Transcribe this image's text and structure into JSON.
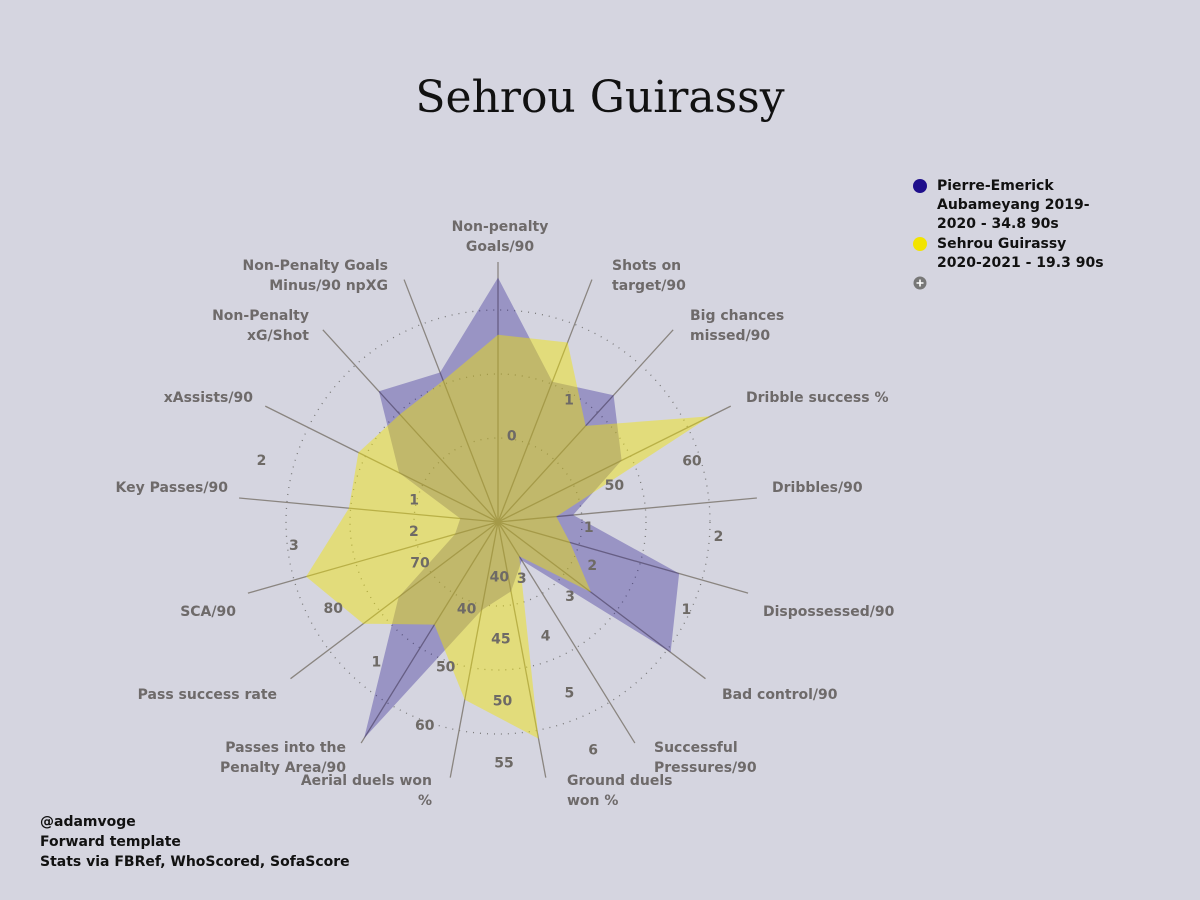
{
  "chart_data": {
    "type": "radar",
    "title": "Sehrou Guirassy",
    "axes": [
      {
        "name": "Non-penalty Goals/90",
        "lim": [
          -0.5,
          1
        ],
        "ticks": [
          0
        ]
      },
      {
        "name": "Shots on target/90",
        "lim": [
          0,
          1.85
        ],
        "ticks": [
          1
        ]
      },
      {
        "name": "Big chances missed/90",
        "lim": [
          0,
          1
        ]
      },
      {
        "name": "Dribble success %",
        "lim": [
          35,
          67
        ],
        "ticks": [
          50,
          60
        ]
      },
      {
        "name": "Dribbles/90",
        "lim": [
          0.3,
          2.3
        ],
        "ticks": [
          1,
          2
        ]
      },
      {
        "name": "Dispossessed/90",
        "lim": [
          3,
          0.5
        ],
        "ticks": [
          2,
          1
        ]
      },
      {
        "name": "Bad control/90",
        "lim": [
          4,
          1.5
        ],
        "ticks": [
          3
        ]
      },
      {
        "name": "Successful Pressures/90",
        "lim": [
          2,
          6.2
        ],
        "ticks": [
          3,
          4,
          5,
          6
        ]
      },
      {
        "name": "Ground duels won %",
        "lim": [
          35.5,
          56.5
        ],
        "ticks": [
          40,
          45,
          50,
          55
        ]
      },
      {
        "name": "Aerial duels won %",
        "lim": [
          25,
          67
        ],
        "ticks": [
          40,
          50,
          60
        ]
      },
      {
        "name": "Passes into the Penalty Area/90",
        "lim": [
          0,
          1.4
        ],
        "ticks": [
          1
        ]
      },
      {
        "name": "Pass success rate",
        "lim": [
          61,
          87.5
        ],
        "ticks": [
          70,
          80
        ]
      },
      {
        "name": "SCA/90",
        "lim": [
          1.3,
          3.45
        ],
        "ticks": [
          2,
          3
        ]
      },
      {
        "name": "Key Passes/90",
        "lim": [
          0.45,
          2.1
        ],
        "ticks": [
          1,
          2
        ]
      },
      {
        "name": "xAssists/90",
        "lim": [
          0,
          0.4
        ]
      },
      {
        "name": "Non-Penalty xG/Shot",
        "lim": [
          0,
          0.25
        ]
      },
      {
        "name": "Non-Penalty Goals Minus/90 npXG",
        "lim": [
          -0.3,
          0.3
        ]
      }
    ],
    "series": [
      {
        "name": "Pierre-Emerick Aubameyang 2019-2020 - 34.8 90s",
        "color": "#1f0f8c",
        "values": [
          0.91,
          1.07,
          0.66,
          52.0,
          0.88,
          1.19,
          1.92,
          2.73,
          41.2,
          39.5,
          1.37,
          73.7,
          1.67,
          0.69,
          0.17,
          0.17,
          0.07
        ]
      },
      {
        "name": "Sehrou Guirassy 2020-2021 - 19.3 90s",
        "color": "#f2e400",
        "values": [
          0.58,
          1.37,
          0.5,
          64.2,
          0.75,
          2.28,
          2.88,
          2.65,
          53.3,
          54.2,
          0.65,
          78.2,
          2.95,
          1.4,
          0.24,
          0.14,
          0.05
        ]
      }
    ],
    "annotations": [
      "@adamvoge",
      "Forward template",
      "Stats via FBRef, WhoScored, SofaScore"
    ]
  }
}
